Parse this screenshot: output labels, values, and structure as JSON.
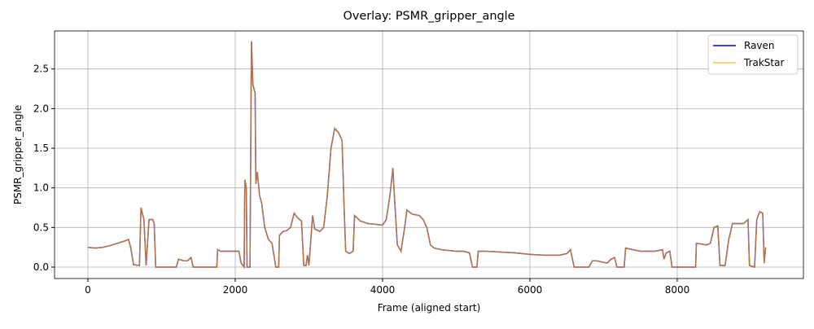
{
  "chart_data": {
    "type": "line",
    "title": "Overlay: PSMR_gripper_angle",
    "xlabel": "Frame (aligned start)",
    "ylabel": "PSMR_gripper_angle",
    "x": [
      0,
      100,
      200,
      300,
      400,
      500,
      550,
      580,
      620,
      700,
      720,
      760,
      790,
      830,
      880,
      900,
      920,
      1000,
      1200,
      1230,
      1300,
      1350,
      1400,
      1430,
      1600,
      1750,
      1760,
      1800,
      1900,
      2000,
      2050,
      2080,
      2120,
      2130,
      2150,
      2160,
      2200,
      2220,
      2240,
      2270,
      2280,
      2300,
      2330,
      2360,
      2400,
      2450,
      2500,
      2550,
      2590,
      2600,
      2650,
      2700,
      2750,
      2800,
      2850,
      2900,
      2930,
      2960,
      2980,
      3000,
      3030,
      3050,
      3080,
      3150,
      3200,
      3250,
      3300,
      3350,
      3400,
      3450,
      3480,
      3500,
      3550,
      3600,
      3620,
      3700,
      3800,
      3900,
      4000,
      4050,
      4100,
      4140,
      4160,
      4200,
      4250,
      4300,
      4330,
      4400,
      4500,
      4550,
      4600,
      4650,
      4700,
      4800,
      4900,
      5000,
      5100,
      5180,
      5220,
      5280,
      5300,
      5400,
      5600,
      5800,
      6000,
      6200,
      6400,
      6500,
      6550,
      6600,
      6800,
      6850,
      6900,
      7000,
      7050,
      7100,
      7150,
      7180,
      7280,
      7300,
      7400,
      7500,
      7700,
      7800,
      7820,
      7850,
      7900,
      7930,
      8250,
      8260,
      8400,
      8450,
      8500,
      8550,
      8580,
      8650,
      8700,
      8750,
      8800,
      8900,
      8960,
      8980,
      9050,
      9080,
      9120,
      9160,
      9180,
      9200
    ],
    "series": [
      {
        "name": "Raven",
        "color": "#0000ff",
        "values": [
          0.25,
          0.24,
          0.25,
          0.27,
          0.3,
          0.33,
          0.35,
          0.25,
          0.03,
          0.02,
          0.75,
          0.6,
          0.02,
          0.6,
          0.6,
          0.55,
          0,
          0,
          0,
          0.1,
          0.08,
          0.08,
          0.12,
          0,
          0,
          0,
          0.22,
          0.2,
          0.2,
          0.2,
          0.2,
          0.05,
          0,
          1.1,
          1,
          0,
          0,
          2.85,
          2.3,
          2.2,
          1.05,
          1.2,
          0.9,
          0.8,
          0.5,
          0.35,
          0.3,
          0,
          0,
          0.4,
          0.45,
          0.46,
          0.5,
          0.68,
          0.62,
          0.58,
          0.02,
          0.02,
          0.15,
          0.02,
          0.4,
          0.65,
          0.48,
          0.45,
          0.5,
          0.9,
          1.5,
          1.75,
          1.7,
          1.6,
          0.7,
          0.2,
          0.17,
          0.2,
          0.65,
          0.58,
          0.55,
          0.54,
          0.53,
          0.6,
          0.9,
          1.25,
          0.9,
          0.28,
          0.2,
          0.5,
          0.72,
          0.67,
          0.65,
          0.6,
          0.5,
          0.28,
          0.24,
          0.22,
          0.21,
          0.2,
          0.2,
          0.18,
          0,
          0,
          0.2,
          0.2,
          0.19,
          0.18,
          0.16,
          0.15,
          0.15,
          0.17,
          0.22,
          0,
          0,
          0.08,
          0.08,
          0.06,
          0.05,
          0.1,
          0.12,
          0,
          0,
          0.24,
          0.22,
          0.2,
          0.2,
          0.22,
          0.1,
          0.18,
          0.2,
          0,
          0,
          0.3,
          0.28,
          0.3,
          0.5,
          0.52,
          0.02,
          0.02,
          0.35,
          0.55,
          0.55,
          0.55,
          0.6,
          0.02,
          0,
          0.6,
          0.7,
          0.68,
          0.05,
          0.25
        ]
      },
      {
        "name": "TrakStar",
        "color": "#ffa500",
        "values": [
          0.25,
          0.24,
          0.25,
          0.27,
          0.3,
          0.33,
          0.35,
          0.25,
          0.03,
          0.02,
          0.75,
          0.6,
          0.02,
          0.6,
          0.6,
          0.55,
          0,
          0,
          0,
          0.1,
          0.08,
          0.08,
          0.12,
          0,
          0,
          0,
          0.22,
          0.2,
          0.2,
          0.2,
          0.2,
          0.05,
          0,
          1.1,
          1,
          0,
          0,
          2.85,
          2.3,
          2.2,
          1.05,
          1.2,
          0.9,
          0.8,
          0.5,
          0.35,
          0.3,
          0,
          0,
          0.4,
          0.45,
          0.46,
          0.5,
          0.68,
          0.62,
          0.58,
          0.02,
          0.02,
          0.15,
          0.02,
          0.4,
          0.65,
          0.48,
          0.45,
          0.5,
          0.9,
          1.5,
          1.75,
          1.7,
          1.6,
          0.7,
          0.2,
          0.17,
          0.2,
          0.65,
          0.58,
          0.55,
          0.54,
          0.53,
          0.6,
          0.9,
          1.25,
          0.9,
          0.28,
          0.2,
          0.5,
          0.72,
          0.67,
          0.65,
          0.6,
          0.5,
          0.28,
          0.24,
          0.22,
          0.21,
          0.2,
          0.2,
          0.18,
          0,
          0,
          0.2,
          0.2,
          0.19,
          0.18,
          0.16,
          0.15,
          0.15,
          0.17,
          0.22,
          0,
          0,
          0.08,
          0.08,
          0.06,
          0.05,
          0.1,
          0.12,
          0,
          0,
          0.24,
          0.22,
          0.2,
          0.2,
          0.22,
          0.1,
          0.18,
          0.2,
          0,
          0,
          0.3,
          0.28,
          0.3,
          0.5,
          0.52,
          0.02,
          0.02,
          0.35,
          0.55,
          0.55,
          0.55,
          0.6,
          0.02,
          0,
          0.6,
          0.7,
          0.68,
          0.05,
          0.25
        ]
      }
    ],
    "xlim": [
      -453,
      9713
    ],
    "ylim": [
      -0.144,
      2.98
    ],
    "xticks": [
      0,
      2000,
      4000,
      6000,
      8000
    ],
    "yticks": [
      {
        "value": 0,
        "label": "0.0"
      },
      0.5,
      {
        "value": 1,
        "label": "1.0"
      },
      1.5,
      {
        "value": 2,
        "label": "2.0"
      },
      2.5
    ],
    "grid": true,
    "legend": "upper right"
  }
}
